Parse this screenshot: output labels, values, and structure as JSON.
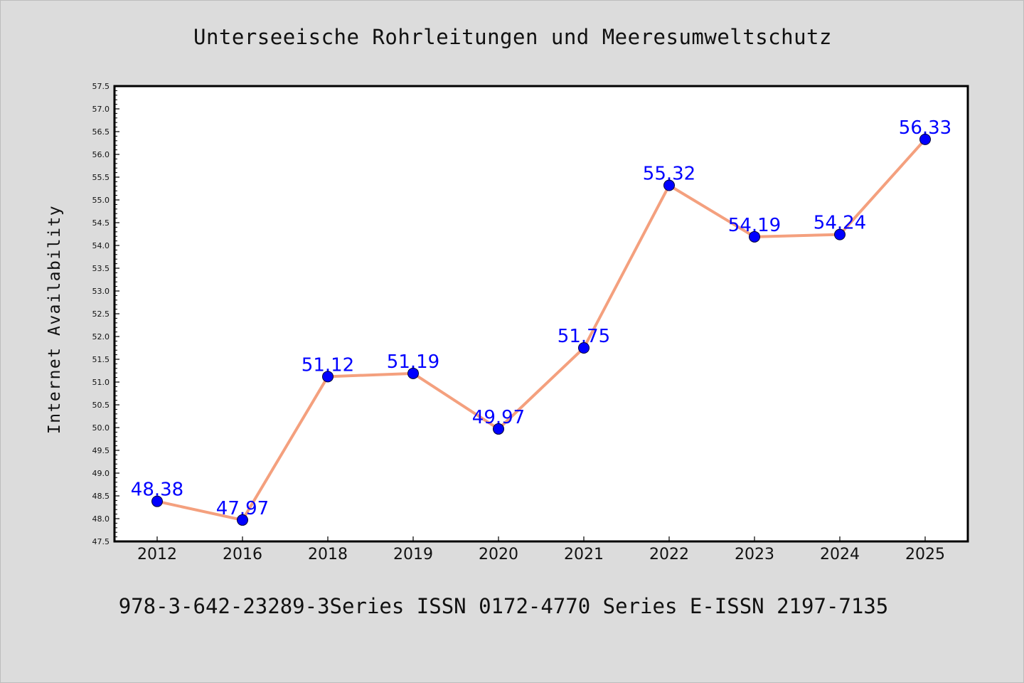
{
  "chart_data": {
    "type": "line",
    "title": "Unterseeische Rohrleitungen und Meeresumweltschutz",
    "xlabel": "",
    "ylabel": "Internet Availability",
    "categories": [
      "2012",
      "2016",
      "2018",
      "2019",
      "2020",
      "2021",
      "2022",
      "2023",
      "2024",
      "2025"
    ],
    "series": [
      {
        "values": [
          48.38,
          47.97,
          51.12,
          51.19,
          49.97,
          51.75,
          55.32,
          54.19,
          54.24,
          56.33
        ],
        "labels": [
          "48.38",
          "47.97",
          "51.12",
          "51.19",
          "49.97",
          "51.75",
          "55.32",
          "54.19",
          "54.24",
          "56.33"
        ],
        "line_color": "#f4a07e",
        "marker_color": "#0000ff"
      }
    ],
    "ylim": [
      47.5,
      57.5
    ],
    "yticks": [
      "47.5",
      "48.0",
      "48.5",
      "49.0",
      "49.5",
      "50.0",
      "50.5",
      "51.0",
      "51.5",
      "52.0",
      "52.5",
      "53.0",
      "53.5",
      "54.0",
      "54.5",
      "55.0",
      "55.5",
      "56.0",
      "56.5",
      "57.0",
      "57.5"
    ],
    "grid": false,
    "legend": "none"
  },
  "footer": "978-3-642-23289-3Series ISSN 0172-4770 Series E-ISSN 2197-7135",
  "colors": {
    "background": "#dcdcdc",
    "plot_background": "#ffffff",
    "line": "#f4a07e",
    "marker": "#0000ff",
    "data_label": "#0000ff"
  }
}
